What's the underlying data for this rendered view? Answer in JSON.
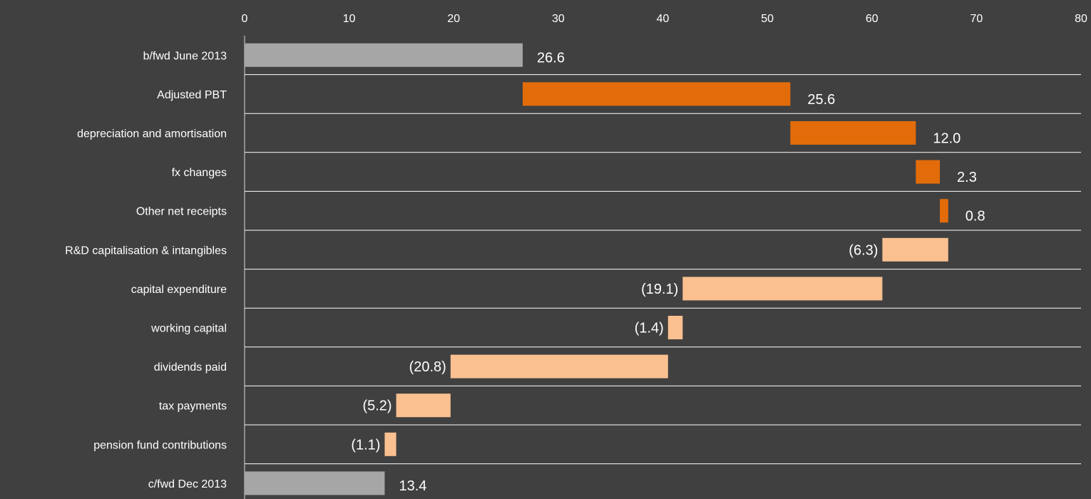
{
  "chart_data": {
    "type": "bar",
    "subtype": "horizontal-waterfall",
    "title": "",
    "xlabel": "",
    "ylabel": "",
    "xlim": [
      0,
      80
    ],
    "x_ticks": [
      "0",
      "10",
      "20",
      "30",
      "40",
      "50",
      "60",
      "70",
      "80"
    ],
    "x_axis_position": "top",
    "grid": true,
    "legend": "none",
    "categories": [
      "b/fwd June 2013",
      "Adjusted PBT",
      "depreciation and amortisation",
      "fx changes",
      "Other net receipts",
      "R&D capitalisation & intangibles",
      "capital expenditure",
      "working capital",
      "dividends paid",
      "tax payments",
      "pension fund contributions",
      "c/fwd Dec 2013"
    ],
    "values": [
      26.6,
      25.6,
      12.0,
      2.3,
      0.8,
      -6.3,
      -19.1,
      -1.4,
      -20.8,
      -5.2,
      -1.1,
      13.4
    ],
    "bar_kinds": [
      "total",
      "increase",
      "increase",
      "increase",
      "increase",
      "decrease",
      "decrease",
      "decrease",
      "decrease",
      "decrease",
      "decrease",
      "total"
    ],
    "data_labels": [
      "26.6",
      "25.6",
      "12.0",
      "2.3",
      "0.8",
      "(6.3)",
      "(19.1)",
      "(1.4)",
      "(20.8)",
      "(5.2)",
      "(1.1)",
      "13.4"
    ],
    "colors": {
      "background": "#404040",
      "total": "#a6a6a6",
      "increase": "#e36c0a",
      "decrease": "#fac090",
      "text": "#ffffff",
      "grid": "#ffffff"
    }
  }
}
